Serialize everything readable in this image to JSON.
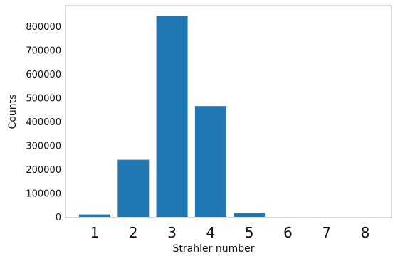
{
  "chart_data": {
    "type": "bar",
    "categories": [
      "1",
      "2",
      "3",
      "4",
      "5",
      "6",
      "7",
      "8"
    ],
    "values": [
      10000,
      240000,
      843000,
      465000,
      15000,
      0,
      0,
      0
    ],
    "xlabel": "Strahler number",
    "ylabel": "Counts",
    "ylim": [
      0,
      870000
    ],
    "yticks": [
      "0",
      "100000",
      "200000",
      "300000",
      "400000",
      "500000",
      "600000",
      "700000",
      "800000"
    ],
    "bar_color": "#1f77b4",
    "grid": false
  }
}
